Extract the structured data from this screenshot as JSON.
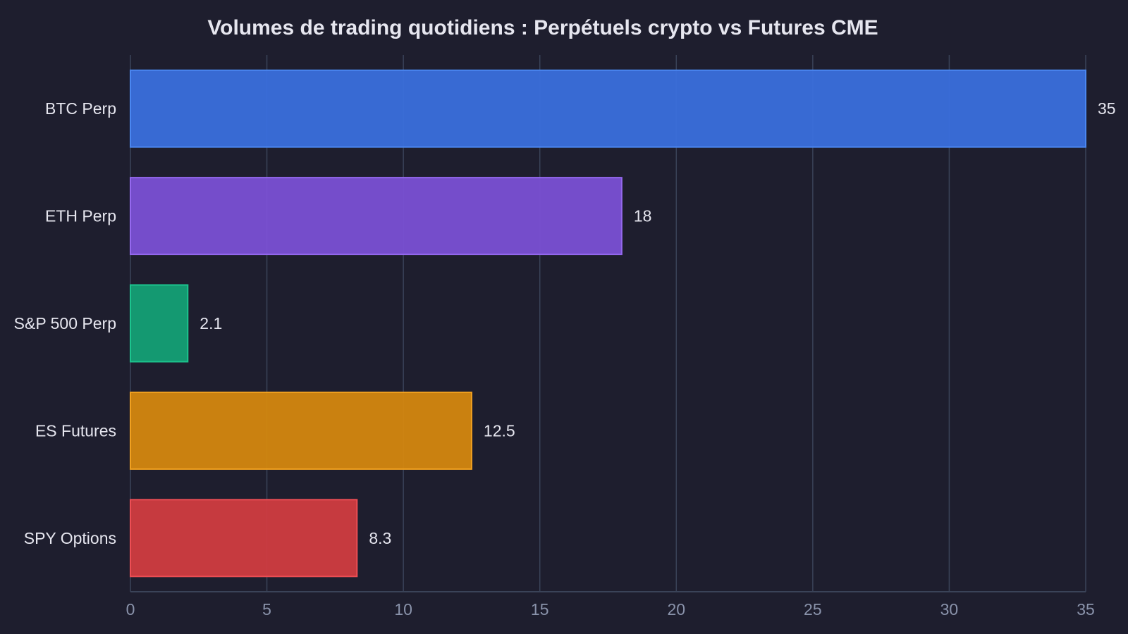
{
  "chart_data": {
    "type": "bar",
    "orientation": "horizontal",
    "title": "Volumes de trading quotidiens : Perpétuels crypto vs Futures CME",
    "xlabel": "",
    "ylabel": "",
    "categories": [
      "BTC Perp",
      "ETH Perp",
      "S&P 500 Perp",
      "ES Futures",
      "SPY Options"
    ],
    "values": [
      35,
      18,
      2.1,
      12.5,
      8.3
    ],
    "value_labels": [
      "35",
      "18",
      "2.1",
      "12.5",
      "8.3"
    ],
    "colors": [
      "#3a6fdc",
      "#7a50d4",
      "#14a075",
      "#d4870f",
      "#d03c40"
    ],
    "edge_colors": [
      "#4a86f0",
      "#9468ee",
      "#1cc48e",
      "#f0a020",
      "#ec4e54"
    ],
    "xlim": [
      0,
      35
    ],
    "xticks": [
      0,
      5,
      10,
      15,
      20,
      25,
      30,
      35
    ],
    "xtick_labels": [
      "0",
      "5",
      "10",
      "15",
      "20",
      "25",
      "30",
      "35"
    ],
    "grid": true,
    "legend": "none"
  }
}
